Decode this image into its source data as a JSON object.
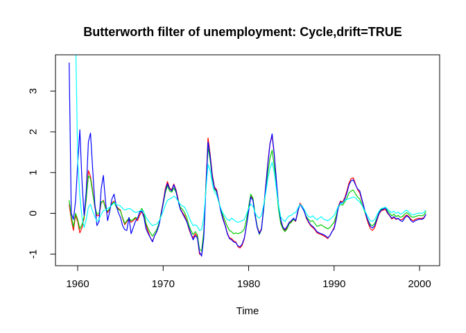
{
  "chart_data": {
    "type": "line",
    "title": "Butterworth filter of unemployment: Cycle,drift=TRUE",
    "xlabel": "Time",
    "ylabel": "",
    "grid": false,
    "legend": "none",
    "axis_color": "#000000",
    "background": "#ffffff",
    "x_ticks": [
      1960,
      1970,
      1980,
      1990,
      2000
    ],
    "y_ticks": [
      -1,
      0,
      1,
      2,
      3
    ],
    "xlim": [
      1957.4,
      2002.35
    ],
    "ylim": [
      -1.285,
      3.889
    ],
    "x_start": 1959.0,
    "x_step": 0.25,
    "x_end": 2000.75,
    "series": [
      {
        "name": "cycle-red",
        "color": "#ff0000",
        "values": [
          0.22,
          -0.15,
          -0.42,
          -0.05,
          -0.2,
          -0.48,
          -0.35,
          -0.12,
          0.35,
          1.05,
          0.9,
          0.55,
          0.15,
          -0.06,
          -0.05,
          0.25,
          0.32,
          0.15,
          0.02,
          0.1,
          0.25,
          0.3,
          0.18,
          0.12,
          0.08,
          -0.12,
          -0.28,
          -0.2,
          -0.15,
          -0.22,
          -0.18,
          -0.12,
          -0.18,
          -0.05,
          0.05,
          -0.05,
          -0.3,
          -0.45,
          -0.6,
          -0.68,
          -0.55,
          -0.45,
          -0.28,
          0.0,
          0.28,
          0.6,
          0.78,
          0.62,
          0.58,
          0.72,
          0.58,
          0.35,
          0.12,
          0.02,
          -0.05,
          -0.18,
          -0.38,
          -0.52,
          -0.6,
          -0.5,
          -0.58,
          -1.0,
          -1.02,
          -0.55,
          0.7,
          1.85,
          1.45,
          0.95,
          0.65,
          0.58,
          0.32,
          0.08,
          -0.12,
          -0.28,
          -0.48,
          -0.6,
          -0.62,
          -0.68,
          -0.7,
          -0.82,
          -0.85,
          -0.78,
          -0.62,
          -0.3,
          0.08,
          0.42,
          0.35,
          -0.02,
          -0.32,
          -0.48,
          -0.38,
          0.12,
          0.68,
          1.25,
          1.72,
          1.9,
          1.42,
          0.78,
          0.18,
          -0.18,
          -0.35,
          -0.42,
          -0.35,
          -0.25,
          -0.2,
          -0.15,
          -0.2,
          0.02,
          0.25,
          0.18,
          0.06,
          -0.12,
          -0.22,
          -0.3,
          -0.35,
          -0.4,
          -0.48,
          -0.5,
          -0.52,
          -0.55,
          -0.58,
          -0.62,
          -0.55,
          -0.45,
          -0.35,
          -0.12,
          0.18,
          0.3,
          0.28,
          0.38,
          0.55,
          0.75,
          0.85,
          0.87,
          0.72,
          0.58,
          0.5,
          0.32,
          0.12,
          -0.08,
          -0.25,
          -0.38,
          -0.42,
          -0.35,
          -0.18,
          -0.02,
          0.06,
          0.08,
          0.1,
          0.0,
          -0.06,
          -0.14,
          -0.1,
          -0.15,
          -0.13,
          -0.16,
          -0.15,
          -0.08,
          -0.04,
          -0.08,
          -0.15,
          -0.18,
          -0.15,
          -0.13,
          -0.12,
          -0.13,
          -0.1,
          -0.03
        ]
      },
      {
        "name": "cycle-green",
        "color": "#00cd00",
        "values": [
          0.32,
          -0.08,
          -0.33,
          0.0,
          -0.15,
          -0.38,
          -0.28,
          -0.08,
          0.35,
          0.92,
          0.85,
          0.5,
          0.18,
          -0.02,
          0.0,
          0.28,
          0.3,
          0.12,
          0.05,
          0.12,
          0.22,
          0.28,
          0.16,
          0.1,
          0.06,
          -0.1,
          -0.25,
          -0.18,
          -0.12,
          -0.18,
          -0.15,
          -0.1,
          -0.12,
          0.02,
          0.12,
          0.02,
          -0.25,
          -0.38,
          -0.48,
          -0.56,
          -0.48,
          -0.4,
          -0.25,
          -0.02,
          0.22,
          0.5,
          0.68,
          0.55,
          0.52,
          0.62,
          0.52,
          0.32,
          0.15,
          0.1,
          0.02,
          -0.1,
          -0.28,
          -0.42,
          -0.52,
          -0.45,
          -0.52,
          -0.88,
          -0.92,
          -0.45,
          0.65,
          1.62,
          1.3,
          0.85,
          0.6,
          0.52,
          0.28,
          0.1,
          -0.05,
          -0.18,
          -0.32,
          -0.42,
          -0.45,
          -0.5,
          -0.48,
          -0.5,
          -0.48,
          -0.45,
          -0.38,
          -0.15,
          0.15,
          0.47,
          0.38,
          0.0,
          -0.32,
          -0.52,
          -0.4,
          0.08,
          0.55,
          1.0,
          1.35,
          1.55,
          1.15,
          0.6,
          0.1,
          -0.25,
          -0.38,
          -0.45,
          -0.38,
          -0.26,
          -0.22,
          -0.15,
          -0.18,
          0.05,
          0.22,
          0.15,
          0.05,
          -0.08,
          -0.15,
          -0.2,
          -0.18,
          -0.25,
          -0.32,
          -0.3,
          -0.28,
          -0.32,
          -0.35,
          -0.38,
          -0.35,
          -0.28,
          -0.22,
          -0.05,
          0.15,
          0.22,
          0.2,
          0.28,
          0.38,
          0.5,
          0.55,
          0.57,
          0.48,
          0.4,
          0.35,
          0.22,
          0.08,
          -0.05,
          -0.18,
          -0.28,
          -0.3,
          -0.25,
          -0.12,
          0.02,
          0.1,
          0.12,
          0.15,
          0.06,
          0.0,
          -0.06,
          -0.02,
          -0.08,
          -0.05,
          -0.1,
          -0.08,
          -0.02,
          0.02,
          -0.02,
          -0.08,
          -0.1,
          -0.08,
          -0.06,
          -0.05,
          -0.06,
          -0.04,
          0.04
        ]
      },
      {
        "name": "cycle-blue",
        "color": "#0000ff",
        "values": [
          3.7,
          0.0,
          -0.15,
          0.3,
          1.2,
          2.05,
          0.8,
          -0.05,
          0.55,
          1.75,
          1.97,
          1.1,
          0.25,
          -0.3,
          -0.2,
          0.6,
          0.93,
          0.3,
          -0.18,
          0.05,
          0.35,
          0.47,
          0.2,
          0.02,
          -0.1,
          -0.3,
          -0.4,
          -0.42,
          -0.1,
          -0.5,
          -0.35,
          -0.2,
          -0.12,
          0.03,
          0.05,
          -0.1,
          -0.38,
          -0.5,
          -0.6,
          -0.7,
          -0.55,
          -0.45,
          -0.3,
          -0.05,
          0.25,
          0.55,
          0.73,
          0.6,
          0.55,
          0.7,
          0.55,
          0.3,
          0.1,
          0.0,
          -0.1,
          -0.2,
          -0.35,
          -0.5,
          -0.65,
          -0.55,
          -0.6,
          -0.95,
          -1.05,
          -0.6,
          0.6,
          1.75,
          1.4,
          0.9,
          0.62,
          0.55,
          0.3,
          0.05,
          -0.15,
          -0.3,
          -0.5,
          -0.62,
          -0.65,
          -0.7,
          -0.72,
          -0.8,
          -0.82,
          -0.75,
          -0.6,
          -0.3,
          0.05,
          0.4,
          0.32,
          -0.05,
          -0.35,
          -0.5,
          -0.4,
          0.1,
          0.65,
          1.2,
          1.7,
          1.95,
          1.45,
          0.8,
          0.2,
          -0.15,
          -0.33,
          -0.4,
          -0.32,
          -0.22,
          -0.18,
          -0.12,
          -0.18,
          0.05,
          0.22,
          0.15,
          0.05,
          -0.1,
          -0.2,
          -0.28,
          -0.32,
          -0.38,
          -0.45,
          -0.48,
          -0.5,
          -0.52,
          -0.55,
          -0.6,
          -0.55,
          -0.45,
          -0.38,
          -0.15,
          0.15,
          0.28,
          0.25,
          0.35,
          0.5,
          0.7,
          0.8,
          0.82,
          0.7,
          0.6,
          0.55,
          0.35,
          0.15,
          -0.05,
          -0.2,
          -0.32,
          -0.36,
          -0.3,
          -0.15,
          0.0,
          0.08,
          0.1,
          0.14,
          0.02,
          -0.05,
          -0.12,
          -0.08,
          -0.14,
          -0.12,
          -0.18,
          -0.2,
          -0.12,
          -0.06,
          -0.1,
          -0.18,
          -0.22,
          -0.18,
          -0.16,
          -0.14,
          -0.15,
          -0.12,
          -0.02
        ]
      },
      {
        "name": "cycle-cyan",
        "color": "#00ffff",
        "values": [
          9.0,
          8.0,
          6.5,
          4.4,
          1.33,
          0.43,
          -0.1,
          -0.35,
          -0.15,
          0.15,
          0.22,
          0.05,
          -0.08,
          -0.2,
          -0.15,
          -0.02,
          0.07,
          0.08,
          0.12,
          0.15,
          0.2,
          0.26,
          0.22,
          0.2,
          0.18,
          0.12,
          0.08,
          0.1,
          0.12,
          0.1,
          0.05,
          0.02,
          0.03,
          0.06,
          0.08,
          0.02,
          -0.1,
          -0.18,
          -0.25,
          -0.3,
          -0.28,
          -0.26,
          -0.2,
          -0.08,
          0.05,
          0.2,
          0.32,
          0.35,
          0.38,
          0.42,
          0.38,
          0.3,
          0.22,
          0.18,
          0.15,
          0.05,
          -0.08,
          -0.2,
          -0.3,
          -0.28,
          -0.32,
          -0.42,
          -0.4,
          -0.1,
          0.55,
          1.2,
          1.05,
          0.72,
          0.52,
          0.45,
          0.28,
          0.12,
          0.0,
          -0.08,
          -0.15,
          -0.18,
          -0.12,
          -0.15,
          -0.2,
          -0.22,
          -0.2,
          -0.18,
          -0.15,
          -0.02,
          0.12,
          0.22,
          0.18,
          0.02,
          -0.08,
          -0.12,
          -0.05,
          0.2,
          0.5,
          0.85,
          1.1,
          1.25,
          1.0,
          0.6,
          0.2,
          -0.08,
          -0.16,
          -0.2,
          -0.12,
          -0.06,
          -0.05,
          0.0,
          0.02,
          0.12,
          0.22,
          0.18,
          0.1,
          0.0,
          -0.08,
          -0.1,
          -0.06,
          -0.12,
          -0.16,
          -0.12,
          -0.08,
          -0.14,
          -0.16,
          -0.18,
          -0.15,
          -0.1,
          -0.05,
          0.05,
          0.18,
          0.22,
          0.25,
          0.32,
          0.34,
          0.36,
          0.38,
          0.4,
          0.38,
          0.32,
          0.28,
          0.2,
          0.1,
          0.0,
          -0.1,
          -0.18,
          -0.2,
          -0.15,
          -0.05,
          0.05,
          0.12,
          0.13,
          0.15,
          0.1,
          0.05,
          0.02,
          0.05,
          0.0,
          0.03,
          -0.02,
          0.0,
          0.05,
          0.08,
          0.03,
          -0.02,
          -0.04,
          -0.02,
          0.0,
          0.01,
          0.0,
          0.02,
          0.08
        ]
      }
    ]
  }
}
